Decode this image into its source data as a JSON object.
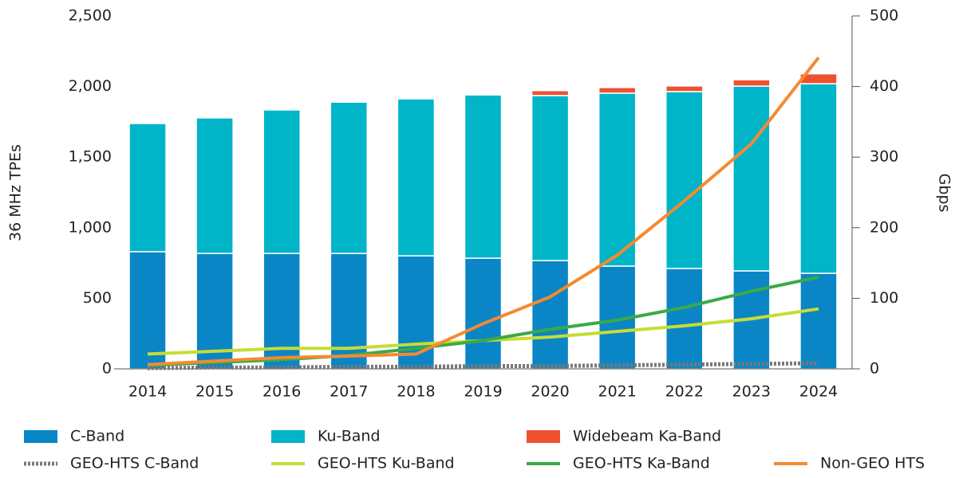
{
  "chart_data": {
    "type": "bar",
    "categories": [
      "2014",
      "2015",
      "2016",
      "2017",
      "2018",
      "2019",
      "2020",
      "2021",
      "2022",
      "2023",
      "2024"
    ],
    "ylabel": "36 MHz TPEs",
    "y2label": "Gbps",
    "ylim": [
      0,
      2500
    ],
    "yticks": [
      0,
      {
        "value": 500,
        "label": "500"
      },
      {
        "value": 1000,
        "label": "1,000"
      },
      {
        "value": 1500,
        "label": "1,500"
      },
      {
        "value": 2000,
        "label": "2,000"
      },
      {
        "value": 2500,
        "label": "2,500"
      }
    ],
    "y2lim": [
      0,
      500
    ],
    "y2ticks": [
      0,
      100,
      200,
      300,
      400,
      500
    ],
    "stacked": true,
    "series": [
      {
        "name": "C-Band",
        "color": "#0a86c7",
        "kind": "bar",
        "values": [
          830,
          818,
          818,
          818,
          801,
          784,
          767,
          728,
          711,
          694,
          677
        ]
      },
      {
        "name": "Ku-Band",
        "color": "#00b5c8",
        "kind": "bar",
        "values": [
          908,
          960,
          1016,
          1072,
          1112,
          1157,
          1169,
          1225,
          1253,
          1309,
          1343
        ]
      },
      {
        "name": "Widebeam Ka-Band",
        "color": "#ef5030",
        "kind": "bar",
        "values": [
          0,
          0,
          0,
          8,
          8,
          8,
          35,
          40,
          40,
          45,
          70
        ]
      },
      {
        "name": "GEO-HTS C-Band",
        "color": "#777777",
        "kind": "line",
        "dashed": true,
        "axis": "y2",
        "values": [
          1,
          2,
          2,
          3,
          3,
          4,
          4,
          5,
          6,
          7,
          8
        ]
      },
      {
        "name": "GEO-HTS Ku-Band",
        "color": "#c8dc32",
        "kind": "line",
        "axis": "y2",
        "values": [
          21,
          25,
          29,
          29,
          35,
          40,
          45,
          53,
          61,
          71,
          85
        ]
      },
      {
        "name": "GEO-HTS Ka-Band",
        "color": "#3aaa48",
        "kind": "line",
        "axis": "y2",
        "values": [
          5,
          9,
          13,
          19,
          29,
          40,
          56,
          69,
          87,
          110,
          130
        ]
      },
      {
        "name": "Non-GEO HTS",
        "color": "#f58a30",
        "kind": "line",
        "axis": "y2",
        "values": [
          6,
          11,
          16,
          18,
          21,
          64,
          102,
          161,
          238,
          319,
          441
        ]
      }
    ]
  }
}
